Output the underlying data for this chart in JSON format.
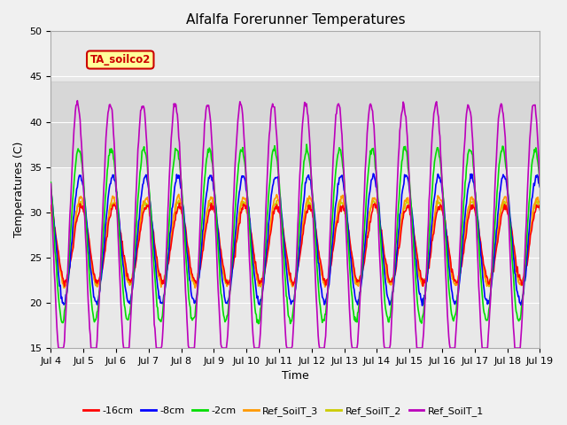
{
  "title": "Alfalfa Forerunner Temperatures",
  "xlabel": "Time",
  "ylabel": "Temperatures (C)",
  "ylim": [
    15,
    50
  ],
  "xlim_days": [
    4,
    19
  ],
  "shade_ymin": 35,
  "shade_ymax": 44.5,
  "legend_label": "TA_soilco2",
  "line_colors": {
    "-16cm": "#ff0000",
    "-8cm": "#0000ff",
    "-2cm": "#00dd00",
    "Ref_SoilT_3": "#ff9900",
    "Ref_SoilT_2": "#cccc00",
    "Ref_SoilT_1": "#bb00bb"
  },
  "background_color": "#f0f0f0",
  "plot_bg": "#e8e8e8",
  "tick_dates": [
    "Jul 4",
    "Jul 5",
    "Jul 6",
    "Jul 7",
    "Jul 8",
    "Jul 9",
    "Jul 10",
    "Jul 11",
    "Jul 12",
    "Jul 13",
    "Jul 14",
    "Jul 15",
    "Jul 16",
    "Jul 17",
    "Jul 18",
    "Jul 19"
  ],
  "legend_box_color": "#ffff99",
  "legend_box_edge": "#cc0000",
  "title_fontsize": 11,
  "label_fontsize": 9,
  "tick_fontsize": 8,
  "legend_fontsize": 8
}
